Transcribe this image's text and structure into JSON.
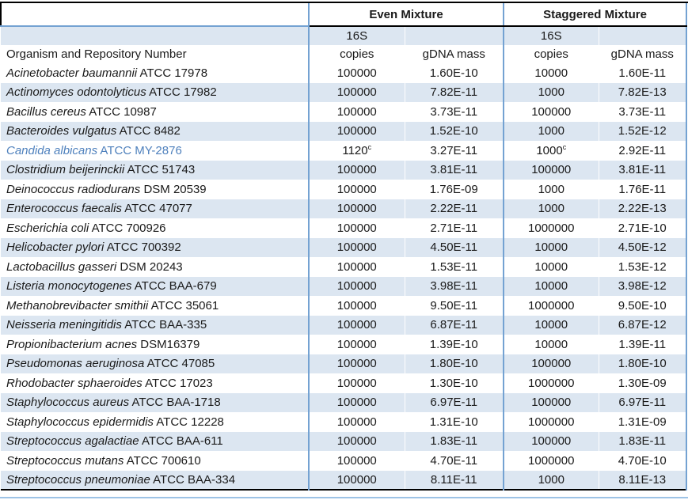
{
  "table": {
    "group_headers": {
      "even": "Even Mixture",
      "staggered": "Staggered Mixture"
    },
    "subheader_16s": "16S",
    "organism_header": "Organism and Repository Number",
    "sub_headers": [
      "copies",
      "gDNA mass",
      "copies",
      "gDNA mass"
    ],
    "rows": [
      {
        "organism": "Acinetobacter baumannii",
        "repository": "ATCC 17978",
        "even_copies": "100000",
        "even_mass": "1.60E-10",
        "stag_copies": "10000",
        "stag_mass": "1.60E-11"
      },
      {
        "organism": "Actinomyces odontolyticus",
        "repository": "ATCC 17982",
        "even_copies": "100000",
        "even_mass": "7.82E-11",
        "stag_copies": "1000",
        "stag_mass": "7.82E-13"
      },
      {
        "organism": "Bacillus cereus",
        "repository": "ATCC 10987",
        "even_copies": "100000",
        "even_mass": "3.73E-11",
        "stag_copies": "100000",
        "stag_mass": "3.73E-11"
      },
      {
        "organism": "Bacteroides vulgatus",
        "repository": "ATCC 8482",
        "even_copies": "100000",
        "even_mass": "1.52E-10",
        "stag_copies": "1000",
        "stag_mass": "1.52E-12"
      },
      {
        "organism": "Candida albicans",
        "repository": "ATCC MY-2876",
        "name_color": "#4f81bd",
        "even_copies": "1120",
        "even_copies_sup": "c",
        "even_mass": "3.27E-11",
        "stag_copies": "1000",
        "stag_copies_sup": "c",
        "stag_mass": "2.92E-11"
      },
      {
        "organism": "Clostridium beijerinckii",
        "repository": "ATCC 51743",
        "even_copies": "100000",
        "even_mass": "3.81E-11",
        "stag_copies": "100000",
        "stag_mass": "3.81E-11"
      },
      {
        "organism": "Deinococcus radiodurans",
        "repository": "DSM 20539",
        "even_copies": "100000",
        "even_mass": "1.76E-09",
        "stag_copies": "1000",
        "stag_mass": "1.76E-11"
      },
      {
        "organism": "Enterococcus faecalis",
        "repository": "ATCC 47077",
        "even_copies": "100000",
        "even_mass": "2.22E-11",
        "stag_copies": "1000",
        "stag_mass": "2.22E-13"
      },
      {
        "organism": "Escherichia coli",
        "repository": "ATCC 700926",
        "even_copies": "100000",
        "even_mass": "2.71E-11",
        "stag_copies": "1000000",
        "stag_mass": "2.71E-10"
      },
      {
        "organism": "Helicobacter pylori",
        "repository": "ATCC 700392",
        "even_copies": "100000",
        "even_mass": "4.50E-11",
        "stag_copies": "10000",
        "stag_mass": "4.50E-12"
      },
      {
        "organism": "Lactobacillus gasseri",
        "repository": "DSM 20243",
        "even_copies": "100000",
        "even_mass": "1.53E-11",
        "stag_copies": "10000",
        "stag_mass": "1.53E-12"
      },
      {
        "organism": "Listeria monocytogenes",
        "repository": "ATCC BAA-679",
        "even_copies": "100000",
        "even_mass": "3.98E-11",
        "stag_copies": "10000",
        "stag_mass": "3.98E-12"
      },
      {
        "organism": "Methanobrevibacter smithii",
        "repository": "ATCC 35061",
        "even_copies": "100000",
        "even_mass": "9.50E-11",
        "stag_copies": "1000000",
        "stag_mass": "9.50E-10"
      },
      {
        "organism": "Neisseria meningitidis",
        "repository": "ATCC BAA-335",
        "even_copies": "100000",
        "even_mass": "6.87E-11",
        "stag_copies": "10000",
        "stag_mass": "6.87E-12"
      },
      {
        "organism": "Propionibacterium acnes",
        "repository": "DSM16379",
        "even_copies": "100000",
        "even_mass": "1.39E-10",
        "stag_copies": "10000",
        "stag_mass": "1.39E-11"
      },
      {
        "organism": "Pseudomonas aeruginosa",
        "repository": "ATCC 47085",
        "even_copies": "100000",
        "even_mass": "1.80E-10",
        "stag_copies": "100000",
        "stag_mass": "1.80E-10"
      },
      {
        "organism": "Rhodobacter sphaeroides",
        "repository": "ATCC 17023",
        "even_copies": "100000",
        "even_mass": "1.30E-10",
        "stag_copies": "1000000",
        "stag_mass": "1.30E-09"
      },
      {
        "organism": "Staphylococcus aureus",
        "repository": "ATCC BAA-1718",
        "even_copies": "100000",
        "even_mass": "6.97E-11",
        "stag_copies": "100000",
        "stag_mass": "6.97E-11"
      },
      {
        "organism": "Staphylococcus epidermidis",
        "repository": "ATCC 12228",
        "even_copies": "100000",
        "even_mass": "1.31E-10",
        "stag_copies": "1000000",
        "stag_mass": "1.31E-09"
      },
      {
        "organism": "Streptococcus agalactiae",
        "repository": "ATCC BAA-611",
        "even_copies": "100000",
        "even_mass": "1.83E-11",
        "stag_copies": "100000",
        "stag_mass": "1.83E-11"
      },
      {
        "organism": "Streptococcus mutans",
        "repository": "ATCC 700610",
        "even_copies": "100000",
        "even_mass": "4.70E-11",
        "stag_copies": "1000000",
        "stag_mass": "4.70E-10"
      },
      {
        "organism": "Streptococcus pneumoniae",
        "repository": "ATCC BAA-334",
        "even_copies": "100000",
        "even_mass": "8.11E-11",
        "stag_copies": "1000",
        "stag_mass": "8.11E-13"
      }
    ]
  },
  "colors": {
    "band_blue": "#dce6f1",
    "border_blue": "#74a2d2",
    "highlight_text_blue": "#4f81bd",
    "rule_black": "#000000",
    "bottom_strip_blue": "#9dc3e6"
  }
}
